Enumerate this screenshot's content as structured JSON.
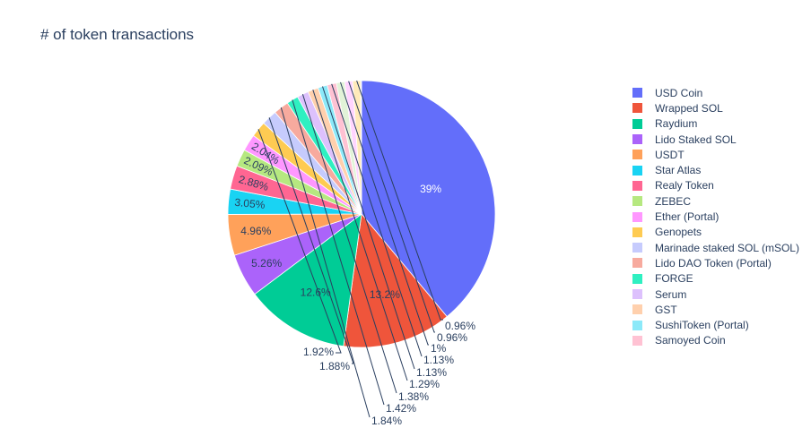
{
  "chart_data": {
    "type": "pie",
    "title": "# of token transactions",
    "labels": [
      "USD Coin",
      "Wrapped SOL",
      "Raydium",
      "Lido Staked SOL",
      "USDT",
      "Star Atlas",
      "Realy Token",
      "ZEBEC",
      "Ether (Portal)",
      "Genopets",
      "Marinade staked SOL (mSOL)",
      "Lido DAO Token (Portal)",
      "FORGE",
      "Serum",
      "GST",
      "SushiToken (Portal)",
      "Samoyed Coin",
      "",
      "",
      "",
      ""
    ],
    "values": [
      39,
      13.2,
      12.6,
      5.26,
      4.96,
      3.05,
      2.88,
      2.09,
      2.04,
      1.92,
      1.88,
      1.84,
      1.42,
      1.38,
      1.29,
      1.13,
      1.13,
      1,
      0.96,
      0.96,
      0.1
    ],
    "text_labels": [
      "39%",
      "13.2%",
      "12.6%",
      "5.26%",
      "4.96%",
      "3.05%",
      "2.88%",
      "2.09%",
      "2.04%",
      "1.92%",
      "1.88%",
      "1.84%",
      "1.42%",
      "1.38%",
      "1.29%",
      "1.13%",
      "1.13%",
      "1%",
      "0.96%",
      "0.96%",
      ""
    ],
    "colors": [
      "#636efa",
      "#EF553B",
      "#00cc96",
      "#ab63fa",
      "#FFA15A",
      "#19d3f3",
      "#FF6692",
      "#B6E880",
      "#FF97FF",
      "#FECB52",
      "#c6cbfd",
      "#f7aa9e",
      "#2ff0c1",
      "#ddc1fd",
      "#ffd0ad",
      "#8ce9f9",
      "#ffc2d3",
      "#e2f3d8",
      "#ffd5ff",
      "#ffeab9",
      "#c6cbfd"
    ],
    "legend_count": 17,
    "legend_placement": "right"
  }
}
